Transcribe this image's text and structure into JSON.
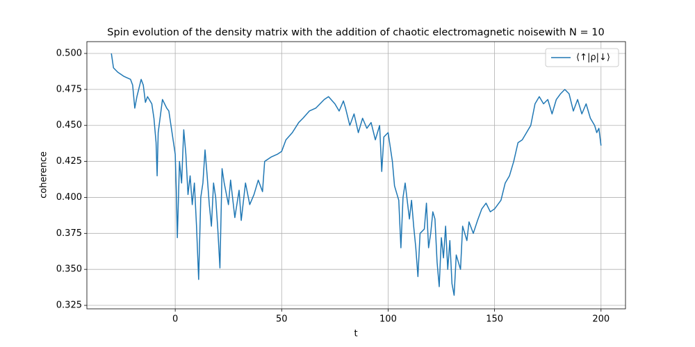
{
  "chart_data": {
    "type": "line",
    "title": "Spin evolution of the density matrix with the addition of chaotic electromagnetic noisewith N = 10",
    "x_label": "t",
    "y_label": "coherence",
    "xlim": [
      -41.5,
      211.5
    ],
    "ylim": [
      0.3226,
      0.5082
    ],
    "xticks": [
      0,
      50,
      100,
      150,
      200
    ],
    "yticks": [
      {
        "value": 0.325,
        "label": "0.325"
      },
      {
        "value": 0.35,
        "label": "0.350"
      },
      {
        "value": 0.375,
        "label": "0.375"
      },
      {
        "value": 0.4,
        "label": "0.400"
      },
      {
        "value": 0.425,
        "label": "0.425"
      },
      {
        "value": 0.45,
        "label": "0.450"
      },
      {
        "value": 0.475,
        "label": "0.475"
      },
      {
        "value": 0.5,
        "label": "0.500"
      }
    ],
    "grid": true,
    "legend": "upper right",
    "x": [
      -30,
      -29,
      -27,
      -24,
      -21,
      -20,
      -19,
      -18,
      -16,
      -15,
      -14,
      -13,
      -11,
      -10,
      -9,
      -8.5,
      -8,
      -6,
      -4,
      -3,
      -2,
      0,
      0.5,
      1,
      2,
      3,
      4,
      5,
      6,
      7,
      8,
      9,
      10,
      11,
      12,
      13,
      14,
      15,
      16,
      17,
      18,
      19,
      20,
      21,
      22,
      23,
      25,
      26,
      28,
      30,
      31,
      33,
      35,
      37,
      39,
      41,
      42,
      45,
      48,
      50,
      52,
      55,
      58,
      60,
      63,
      66,
      70,
      72,
      75,
      77,
      79,
      80,
      82,
      84,
      86,
      88,
      90,
      92,
      94,
      96,
      97,
      98,
      100,
      102,
      103,
      105,
      106,
      107,
      108,
      110,
      111,
      112,
      113,
      114,
      115,
      117,
      118,
      119,
      120,
      121,
      122,
      123,
      124,
      125,
      126,
      127,
      128,
      129,
      130,
      131,
      132,
      134,
      135,
      137,
      138,
      140,
      142,
      144,
      146,
      148,
      150,
      153,
      155,
      157,
      159,
      161,
      163,
      165,
      167,
      169,
      171,
      173,
      175,
      177,
      179,
      181,
      183,
      185,
      187,
      189,
      191,
      193,
      195,
      197,
      198,
      199,
      200
    ],
    "series": [
      {
        "name": "⟨↑|ρ|↓⟩",
        "color": "#1f77b4",
        "values": [
          0.5,
          0.49,
          0.487,
          0.484,
          0.482,
          0.478,
          0.462,
          0.47,
          0.482,
          0.478,
          0.466,
          0.47,
          0.465,
          0.455,
          0.438,
          0.415,
          0.445,
          0.468,
          0.462,
          0.46,
          0.45,
          0.43,
          0.405,
          0.372,
          0.425,
          0.41,
          0.447,
          0.43,
          0.402,
          0.415,
          0.395,
          0.41,
          0.38,
          0.343,
          0.4,
          0.41,
          0.433,
          0.415,
          0.395,
          0.38,
          0.41,
          0.4,
          0.378,
          0.351,
          0.42,
          0.41,
          0.395,
          0.412,
          0.386,
          0.405,
          0.384,
          0.41,
          0.395,
          0.402,
          0.412,
          0.404,
          0.425,
          0.428,
          0.43,
          0.432,
          0.44,
          0.445,
          0.452,
          0.455,
          0.46,
          0.462,
          0.468,
          0.47,
          0.465,
          0.46,
          0.467,
          0.462,
          0.45,
          0.458,
          0.445,
          0.455,
          0.448,
          0.452,
          0.44,
          0.45,
          0.418,
          0.442,
          0.445,
          0.425,
          0.408,
          0.398,
          0.365,
          0.4,
          0.41,
          0.385,
          0.398,
          0.38,
          0.365,
          0.345,
          0.375,
          0.378,
          0.396,
          0.365,
          0.375,
          0.39,
          0.385,
          0.355,
          0.338,
          0.372,
          0.358,
          0.38,
          0.35,
          0.37,
          0.34,
          0.332,
          0.36,
          0.35,
          0.38,
          0.37,
          0.383,
          0.375,
          0.384,
          0.392,
          0.396,
          0.39,
          0.392,
          0.398,
          0.41,
          0.415,
          0.425,
          0.438,
          0.44,
          0.445,
          0.45,
          0.465,
          0.47,
          0.465,
          0.468,
          0.458,
          0.468,
          0.472,
          0.475,
          0.472,
          0.46,
          0.468,
          0.458,
          0.465,
          0.455,
          0.45,
          0.445,
          0.448,
          0.436
        ]
      }
    ]
  }
}
